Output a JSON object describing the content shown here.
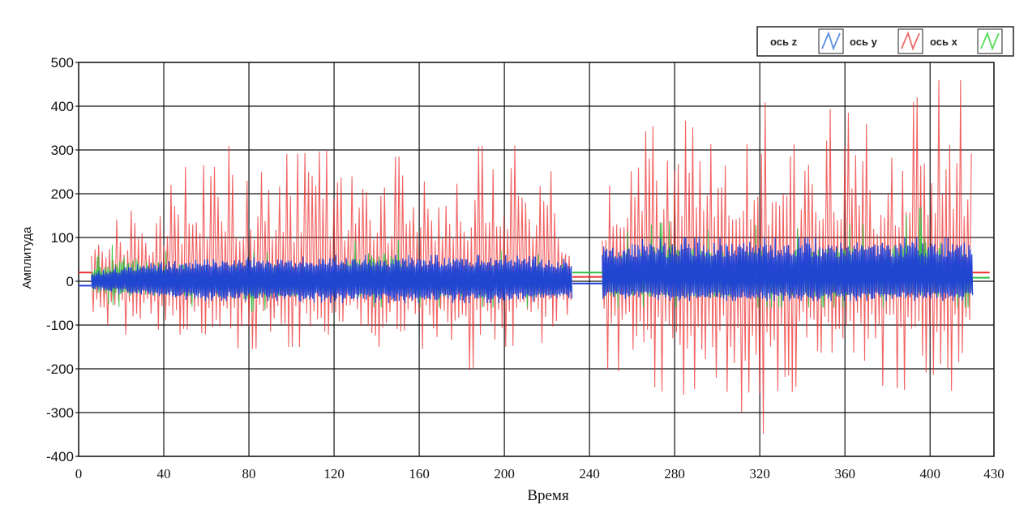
{
  "chart_data": {
    "type": "line",
    "title": "",
    "xlabel": "Время",
    "ylabel": "Амплитуда",
    "xlim": [
      0,
      430
    ],
    "ylim": [
      -400,
      500
    ],
    "x_ticks": [
      0,
      40,
      80,
      120,
      160,
      200,
      240,
      280,
      320,
      360,
      400,
      430
    ],
    "y_ticks": [
      500,
      400,
      300,
      200,
      100,
      0,
      -100,
      -200,
      -300,
      -400
    ],
    "grid": true,
    "legend_position": "top-right",
    "gap": [
      232,
      246
    ],
    "series": [
      {
        "name": "ось z",
        "color": "#1f3fd8",
        "legend_icon_color": "#5b8fe0",
        "segments": [
          {
            "x": [
              6,
              20,
              40,
              60,
              80,
              100,
              120,
              140,
              160,
              180,
              200,
              220,
              232
            ],
            "upper": [
              20,
              35,
              45,
              50,
              55,
              55,
              60,
              60,
              60,
              60,
              60,
              55,
              50
            ],
            "lower": [
              -20,
              -30,
              -40,
              -45,
              -45,
              -45,
              -50,
              -50,
              -50,
              -50,
              -50,
              -45,
              -45
            ]
          },
          {
            "x": [
              246,
              260,
              280,
              300,
              320,
              340,
              360,
              380,
              400,
              420
            ],
            "upper": [
              90,
              95,
              100,
              100,
              100,
              100,
              100,
              100,
              100,
              100
            ],
            "lower": [
              -40,
              -40,
              -45,
              -45,
              -45,
              -45,
              -45,
              -45,
              -45,
              -45
            ]
          }
        ]
      },
      {
        "name": "ось y",
        "color": "#ee2e2e",
        "legend_icon_color": "#ee6a6a",
        "segments": [
          {
            "x": [
              6,
              20,
              40,
              60,
              80,
              100,
              120,
              140,
              160,
              180,
              200,
              220,
              232
            ],
            "upper": [
              90,
              150,
              200,
              320,
              300,
              290,
              300,
              280,
              290,
              300,
              320,
              280,
              100
            ],
            "lower": [
              -80,
              -120,
              -140,
              -150,
              -155,
              -150,
              -150,
              -150,
              -150,
              -215,
              -150,
              -140,
              -100
            ]
          },
          {
            "x": [
              246,
              260,
              280,
              300,
              320,
              340,
              360,
              380,
              400,
              420
            ],
            "upper": [
              250,
              320,
              390,
              300,
              410,
              400,
              390,
              330,
              460,
              460
            ],
            "lower": [
              -200,
              -210,
              -270,
              -220,
              -360,
              -220,
              -230,
              -240,
              -260,
              -240
            ]
          }
        ]
      },
      {
        "name": "ось x",
        "color": "#2ec040",
        "legend_icon_color": "#55dd55",
        "segments": [
          {
            "x": [
              6,
              20,
              40,
              60,
              80,
              100,
              120,
              140,
              160,
              180,
              200,
              220,
              232
            ],
            "upper": [
              45,
              100,
              70,
              60,
              70,
              60,
              65,
              120,
              70,
              60,
              70,
              60,
              25
            ],
            "lower": [
              -40,
              -60,
              -55,
              -60,
              -70,
              -60,
              -60,
              -60,
              -60,
              -60,
              -60,
              -60,
              -40
            ]
          },
          {
            "x": [
              246,
              260,
              280,
              300,
              320,
              340,
              360,
              380,
              400,
              420
            ],
            "upper": [
              80,
              120,
              140,
              110,
              130,
              120,
              130,
              130,
              180,
              80
            ],
            "lower": [
              -60,
              -60,
              -60,
              -60,
              -60,
              -60,
              -60,
              -60,
              -60,
              -60
            ]
          }
        ],
        "baseline_before_gap": 20,
        "baseline_after_end": 20
      }
    ]
  }
}
